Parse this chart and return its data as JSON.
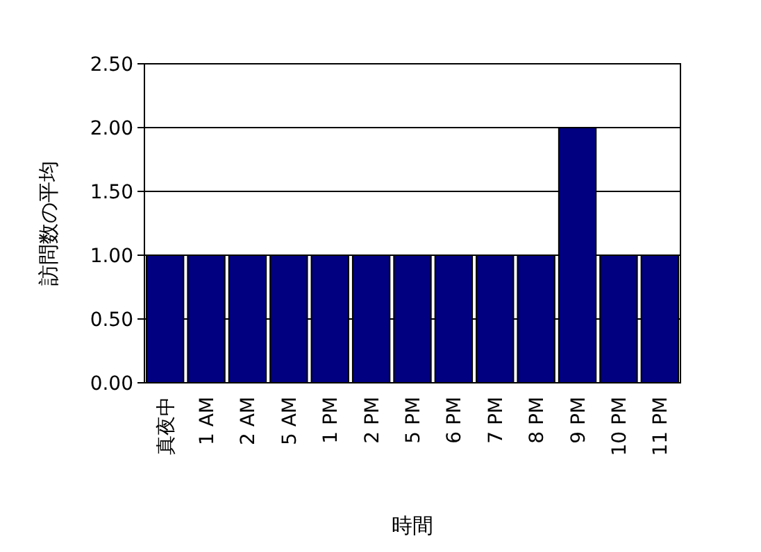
{
  "chart_data": {
    "type": "bar",
    "xlabel": "時間",
    "ylabel": "訪問数の平均",
    "categories": [
      "真夜中",
      "1 AM",
      "2 AM",
      "5 AM",
      "1 PM",
      "2 PM",
      "5 PM",
      "6 PM",
      "7 PM",
      "8 PM",
      "9 PM",
      "10 PM",
      "11 PM"
    ],
    "values": [
      1,
      1,
      1,
      1,
      1,
      1,
      1,
      1,
      1,
      1,
      2,
      1,
      1
    ],
    "color": "#000080",
    "ylim": [
      0,
      2.5
    ],
    "yticks": [
      {
        "value": 0,
        "label": "0.00"
      },
      {
        "value": 0.5,
        "label": "0.50"
      },
      {
        "value": 1,
        "label": "1.00"
      },
      {
        "value": 1.5,
        "label": "1.50"
      },
      {
        "value": 2,
        "label": "2.00"
      },
      {
        "value": 2.5,
        "label": "2.50"
      }
    ],
    "grid": "y"
  }
}
